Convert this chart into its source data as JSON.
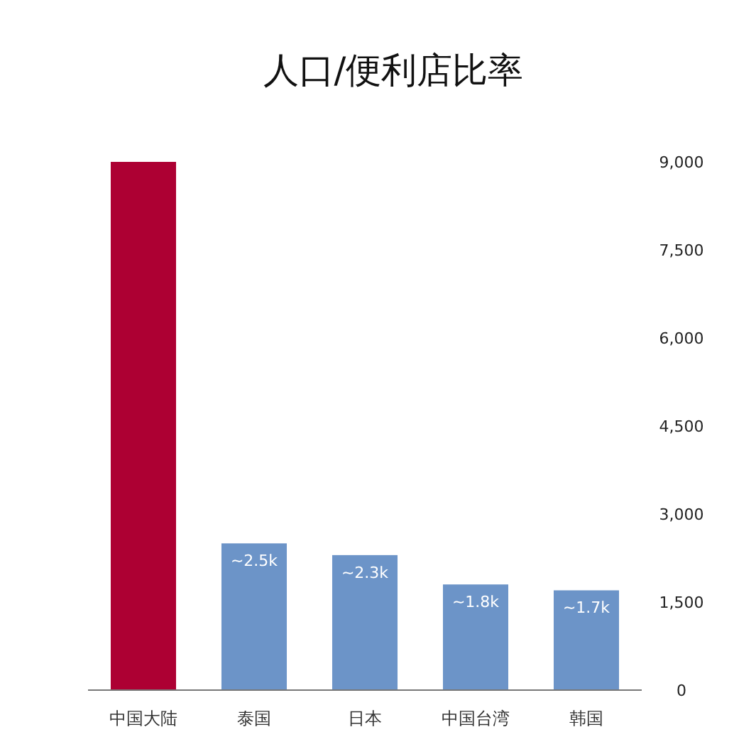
{
  "chart_data": {
    "type": "bar",
    "title": "人口/便利店比率",
    "categories": [
      "中国大陆",
      "泰国",
      "日本",
      "中国台湾",
      "韩国"
    ],
    "values": [
      9000,
      2500,
      2300,
      1800,
      1700
    ],
    "colors": [
      "#ad0033",
      "#6c94c8",
      "#6c94c8",
      "#6c94c8",
      "#6c94c8"
    ],
    "value_labels": [
      null,
      "~2.5k",
      "~2.3k",
      "~1.8k",
      "~1.7k"
    ],
    "ylim": [
      0,
      9000
    ],
    "yticks": [
      0,
      {
        "value": 1500,
        "label": "1,500"
      },
      {
        "value": 3000,
        "label": "3,000"
      },
      {
        "value": 4500,
        "label": "4,500"
      },
      {
        "value": 6000,
        "label": "6,000"
      },
      {
        "value": 7500,
        "label": "7,500"
      },
      {
        "value": 9000,
        "label": "9,000"
      }
    ]
  }
}
